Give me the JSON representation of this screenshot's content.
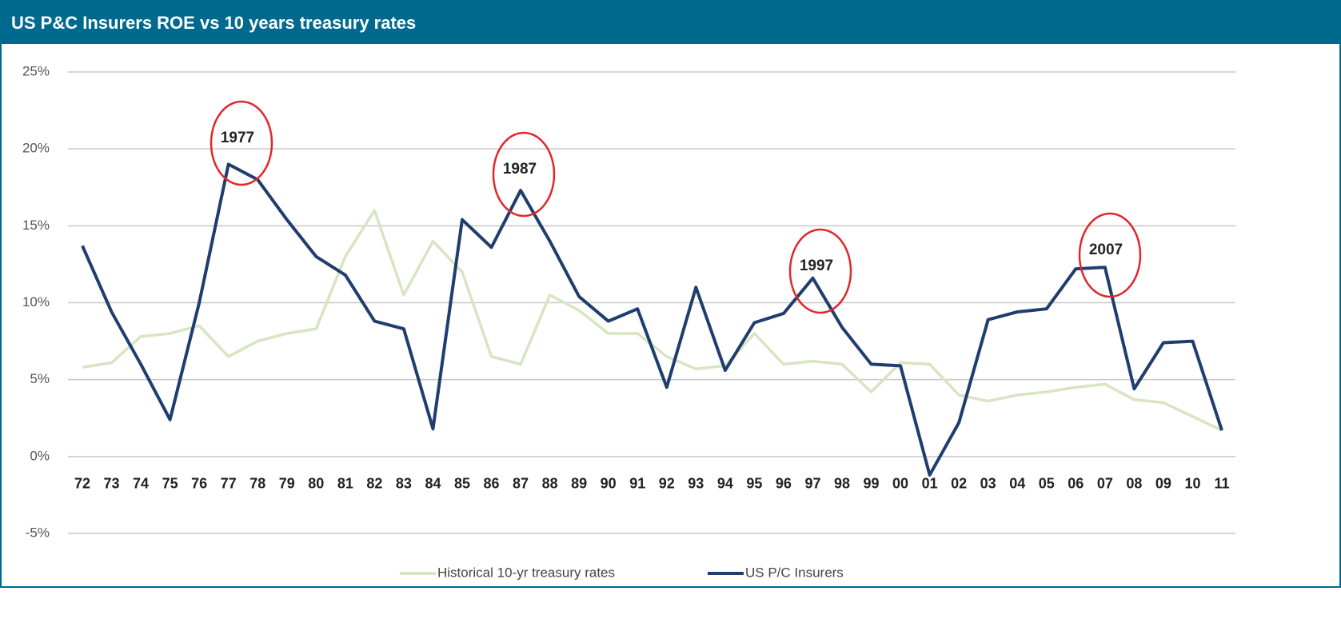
{
  "chart_data": {
    "type": "line",
    "title": "US P&C Insurers ROE vs 10 years treasury rates",
    "categories": [
      "72",
      "73",
      "74",
      "75",
      "76",
      "77",
      "78",
      "79",
      "80",
      "81",
      "82",
      "83",
      "84",
      "85",
      "86",
      "87",
      "88",
      "89",
      "90",
      "91",
      "92",
      "93",
      "94",
      "95",
      "96",
      "97",
      "98",
      "99",
      "00",
      "01",
      "02",
      "03",
      "04",
      "05",
      "06",
      "07",
      "08",
      "09",
      "10",
      "11"
    ],
    "series": [
      {
        "name": "Historical 10-yr treasury rates",
        "color": "#d7e5c3",
        "values": [
          5.8,
          6.1,
          7.8,
          8.0,
          8.5,
          6.5,
          7.5,
          8.0,
          8.3,
          13.0,
          16.0,
          10.5,
          14.0,
          12.0,
          6.5,
          6.0,
          10.5,
          9.5,
          8.0,
          8.0,
          6.5,
          5.7,
          5.9,
          8.0,
          6.0,
          6.2,
          6.0,
          4.2,
          6.1,
          6.0,
          4.0,
          3.6,
          4.0,
          4.2,
          4.5,
          4.7,
          3.7,
          3.5,
          2.6,
          1.7
        ]
      },
      {
        "name": "US P/C Insurers",
        "color": "#1f3e6e",
        "values": [
          13.7,
          9.4,
          6.0,
          2.4,
          10.0,
          19.0,
          18.0,
          15.4,
          13.0,
          11.8,
          8.8,
          8.3,
          1.8,
          15.4,
          13.6,
          17.3,
          14.0,
          10.4,
          8.8,
          9.6,
          4.5,
          11.0,
          5.6,
          8.7,
          9.3,
          11.6,
          8.4,
          6.0,
          5.9,
          -1.2,
          2.2,
          8.9,
          9.4,
          9.6,
          12.2,
          12.3,
          4.4,
          7.4,
          7.5,
          1.7
        ]
      }
    ],
    "ylim": [
      -5,
      25
    ],
    "yticks": [
      {
        "value": -5,
        "label": "-5%"
      },
      {
        "value": 0,
        "label": "0%"
      },
      {
        "value": 5,
        "label": "5%"
      },
      {
        "value": 10,
        "label": "10%"
      },
      {
        "value": 15,
        "label": "15%"
      },
      {
        "value": 20,
        "label": "20%"
      },
      {
        "value": 25,
        "label": "25%"
      }
    ],
    "grid": true,
    "annotations": [
      "1977",
      "1987",
      "1997",
      "2007"
    ]
  }
}
